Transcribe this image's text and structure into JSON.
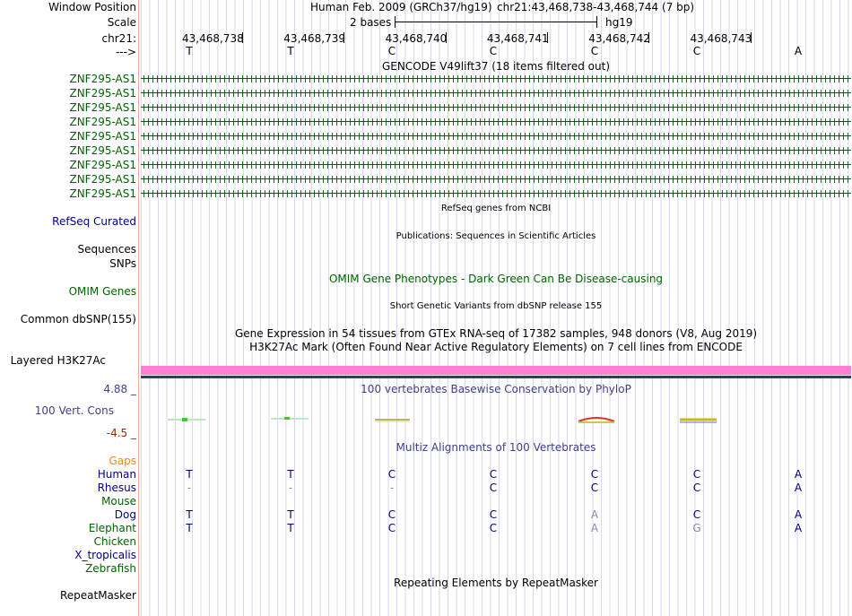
{
  "labels": {
    "window_position": "Window Position",
    "scale": "Scale",
    "chrom": "chr21:",
    "strand": "--->",
    "refseq": "RefSeq Curated",
    "sequences": "Sequences",
    "snps": "SNPs",
    "omim": "OMIM Genes",
    "common_dbsnp": "Common dbSNP(155)",
    "layered": "Layered H3K27Ac",
    "cons_max": "4.88 _",
    "cons_name": "100 Vert. Cons",
    "cons_min": "-4.5 _",
    "gaps": "Gaps",
    "repeatmasker": "RepeatMasker"
  },
  "header": {
    "assembly": "Human Feb. 2009 (GRCh37/hg19)",
    "position": "chr21:43,468,738-43,468,744 (7 bp)",
    "scale_text": "2 bases",
    "scale_db": "hg19"
  },
  "ruler": {
    "positions": [
      "43,468,738",
      "43,468,739",
      "43,468,740",
      "43,468,741",
      "43,468,742",
      "43,468,743"
    ]
  },
  "sequence": [
    "T",
    "T",
    "C",
    "C",
    "C",
    "C",
    "A"
  ],
  "tracks": {
    "gencode_title": "GENCODE V49lift37 (18 items filtered out)",
    "gencode_items": [
      "ZNF295-AS1",
      "ZNF295-AS1",
      "ZNF295-AS1",
      "ZNF295-AS1",
      "ZNF295-AS1",
      "ZNF295-AS1",
      "ZNF295-AS1",
      "ZNF295-AS1",
      "ZNF295-AS1"
    ],
    "refseq_title": "RefSeq genes from NCBI",
    "pubs_title": "Publications: Sequences in Scientific Articles",
    "omim_title": "OMIM Gene Phenotypes - Dark Green Can Be Disease-causing",
    "dbsnp_title": "Short Genetic Variants from dbSNP release 155",
    "gtex_title": "Gene Expression in 54 tissues from GTEx RNA-seq of 17382 samples, 948 donors (V8, Aug 2019)",
    "h3k27_title": "H3K27Ac Mark (Often Found Near Active Regulatory Elements) on 7 cell lines from ENCODE",
    "phylop_title": "100 vertebrates Basewise Conservation by PhyloP",
    "multiz_title": "Multiz Alignments of 100 Vertebrates",
    "repeat_title": "Repeating Elements by RepeatMasker"
  },
  "alignment": [
    {
      "species": "Human",
      "bases": [
        "T",
        "T",
        "C",
        "C",
        "C",
        "C",
        "A"
      ]
    },
    {
      "species": "Rhesus",
      "bases": [
        "-",
        "-",
        "-",
        "C",
        "C",
        "C",
        "A"
      ]
    },
    {
      "species": "Mouse",
      "bases": [
        "",
        "",
        "",
        "",
        "",
        "",
        ""
      ]
    },
    {
      "species": "Dog",
      "bases": [
        "T",
        "T",
        "C",
        "C",
        "A",
        "C",
        "A"
      ]
    },
    {
      "species": "Elephant",
      "bases": [
        "T",
        "T",
        "C",
        "C",
        "A",
        "G",
        "A"
      ]
    },
    {
      "species": "Chicken",
      "bases": [
        "",
        "",
        "",
        "",
        "",
        "",
        ""
      ]
    },
    {
      "species": "X_tropicalis",
      "bases": [
        "",
        "",
        "",
        "",
        "",
        "",
        ""
      ]
    },
    {
      "species": "Zebrafish",
      "bases": [
        "",
        "",
        "",
        "",
        "",
        "",
        ""
      ]
    }
  ],
  "colors": {
    "h3k27_band": "#ff80d5",
    "divider": "#f3a8a8",
    "gene_green": "#006400",
    "label_blue": "#000080"
  }
}
